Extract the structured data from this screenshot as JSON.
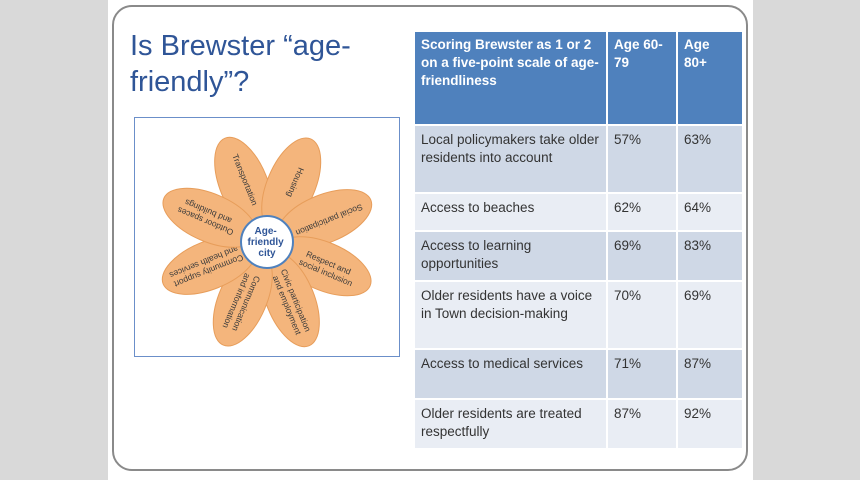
{
  "slide": {
    "title": "Is Brewster “age-friendly”?"
  },
  "diagram": {
    "center_line1": "Age-",
    "center_line2": "friendly",
    "center_line3": "city",
    "petals": [
      {
        "line1": "Transportation",
        "line2": ""
      },
      {
        "line1": "Housing",
        "line2": ""
      },
      {
        "line1": "Social participation",
        "line2": ""
      },
      {
        "line1": "Respect and",
        "line2": "social inclusion"
      },
      {
        "line1": "Civic participation",
        "line2": "and employment"
      },
      {
        "line1": "Communication",
        "line2": "and information"
      },
      {
        "line1": "Community support",
        "line2": "and health services"
      },
      {
        "line1": "Outdoor spaces",
        "line2": "and buildings"
      }
    ],
    "colors": {
      "petal_fill": "#f4b57c",
      "petal_stroke": "#e79d5a",
      "center_stroke": "#4f81bd"
    }
  },
  "table": {
    "headers": [
      "Scoring Brewster as 1 or 2 on a five-point scale of age-friendliness",
      "Age 60-79",
      "Age 80+"
    ],
    "rows": [
      [
        "Local policymakers take older residents into account",
        "57%",
        "63%"
      ],
      [
        "Access to beaches",
        "62%",
        "64%"
      ],
      [
        "Access to learning opportunities",
        "69%",
        "83%"
      ],
      [
        "Older residents have a voice in Town decision-making",
        "70%",
        "69%"
      ],
      [
        "Access to medical services",
        "71%",
        "87%"
      ],
      [
        "Older residents are treated respectfully",
        "87%",
        "92%"
      ]
    ],
    "colors": {
      "header": "#4f81bd",
      "row_odd": "#cfd8e6",
      "row_even": "#e9edf4"
    }
  }
}
